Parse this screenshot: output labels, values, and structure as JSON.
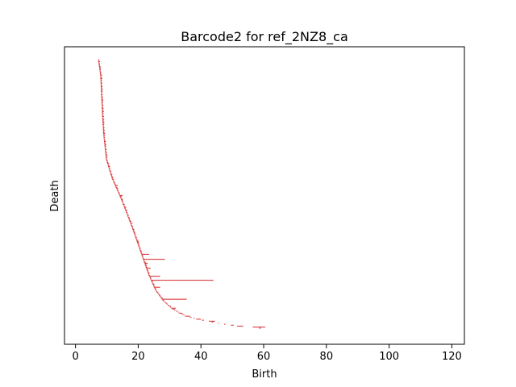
{
  "chart_data": {
    "type": "barcode",
    "title": "Barcode2 for ref_2NZ8_ca",
    "xlabel": "Birth",
    "ylabel": "Death",
    "xlim": [
      -3.5,
      124
    ],
    "x_ticks": [
      0,
      20,
      40,
      60,
      80,
      100,
      120
    ],
    "y_ticks_shown": false,
    "grid": false,
    "bar_color": "#d62728",
    "bar_count": 270,
    "bars": [
      {
        "birth": 7.4,
        "death": 7.8
      },
      {
        "birth": 7.8,
        "death": 8.1
      },
      {
        "birth": 8.2,
        "death": 8.4
      },
      {
        "birth": 8.5,
        "death": 8.8
      },
      {
        "birth": 9.0,
        "death": 9.2
      },
      {
        "birth": 9.4,
        "death": 9.6
      },
      {
        "birth": 10.5,
        "death": 10.8
      },
      {
        "birth": 12.5,
        "death": 13.5
      },
      {
        "birth": 14.0,
        "death": 15.0
      },
      {
        "birth": 15.5,
        "death": 16.2
      },
      {
        "birth": 17.5,
        "death": 18.2
      },
      {
        "birth": 19.5,
        "death": 20.2
      },
      {
        "birth": 21.0,
        "death": 23.5
      },
      {
        "birth": 21.5,
        "death": 28.5
      },
      {
        "birth": 22.0,
        "death": 23.0
      },
      {
        "birth": 22.5,
        "death": 24.0
      },
      {
        "birth": 23.5,
        "death": 27.0
      },
      {
        "birth": 24.0,
        "death": 44.0
      },
      {
        "birth": 25.0,
        "death": 27.0
      },
      {
        "birth": 27.5,
        "death": 35.5
      },
      {
        "birth": 30.5,
        "death": 32.0
      },
      {
        "birth": 33.0,
        "death": 34.0
      },
      {
        "birth": 35.0,
        "death": 36.5
      },
      {
        "birth": 38.5,
        "death": 40.0
      },
      {
        "birth": 42.5,
        "death": 44.5
      },
      {
        "birth": 49.5,
        "death": 50.5
      },
      {
        "birth": 51.5,
        "death": 53.5
      },
      {
        "birth": 56.5,
        "death": 60.5
      }
    ]
  }
}
